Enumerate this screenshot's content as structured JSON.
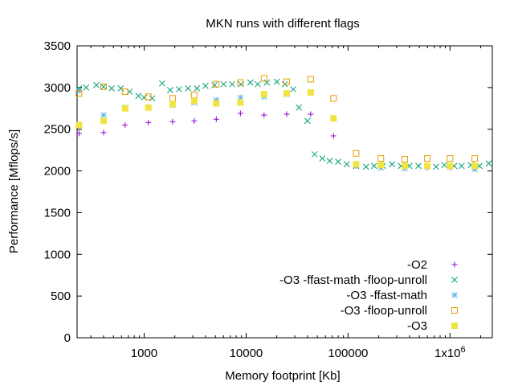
{
  "chart_data": {
    "type": "scatter",
    "title": "MKN runs with different flags",
    "xlabel": "Memory footprint [Kb]",
    "ylabel": "Performance [Mflops/s]",
    "x_scale": "log",
    "xlim": [
      220,
      2600000
    ],
    "ylim": [
      0,
      3500
    ],
    "x_ticks": [
      {
        "value": 1000,
        "label": "1000"
      },
      {
        "value": 10000,
        "label": "10000"
      },
      {
        "value": 100000,
        "label": "100000"
      },
      {
        "value": 1000000,
        "label": "1x10^6"
      }
    ],
    "y_ticks": [
      {
        "value": 0,
        "label": "0"
      },
      {
        "value": 500,
        "label": "500"
      },
      {
        "value": 1000,
        "label": "1000"
      },
      {
        "value": 1500,
        "label": "1500"
      },
      {
        "value": 2000,
        "label": "2000"
      },
      {
        "value": 2500,
        "label": "2500"
      },
      {
        "value": 3000,
        "label": "3000"
      },
      {
        "value": 3500,
        "label": "3500"
      }
    ],
    "grid": false,
    "legend_position": "bottom-right",
    "series": [
      {
        "name": "-O2",
        "marker": "plus",
        "color": "#9400d3",
        "points": [
          [
            230,
            2450
          ],
          [
            400,
            2460
          ],
          [
            650,
            2550
          ],
          [
            1100,
            2580
          ],
          [
            1900,
            2590
          ],
          [
            3100,
            2600
          ],
          [
            5100,
            2620
          ],
          [
            8800,
            2690
          ],
          [
            15000,
            2670
          ],
          [
            25000,
            2680
          ],
          [
            43000,
            2680
          ],
          [
            72000,
            2420
          ],
          [
            120000,
            2060
          ],
          [
            210000,
            2040
          ],
          [
            360000,
            2040
          ],
          [
            600000,
            2040
          ],
          [
            1000000,
            2040
          ],
          [
            1750000,
            2040
          ]
        ]
      },
      {
        "name": "-O3 -ffast-math -floop-unroll",
        "marker": "cross",
        "color": "#009e73",
        "points": [
          [
            230,
            2990
          ],
          [
            270,
            3000
          ],
          [
            340,
            3030
          ],
          [
            400,
            3010
          ],
          [
            480,
            2990
          ],
          [
            590,
            2990
          ],
          [
            720,
            2950
          ],
          [
            880,
            2900
          ],
          [
            1000,
            2880
          ],
          [
            1200,
            2870
          ],
          [
            1500,
            3050
          ],
          [
            1800,
            2970
          ],
          [
            2200,
            2980
          ],
          [
            2700,
            2990
          ],
          [
            3300,
            2990
          ],
          [
            4000,
            3020
          ],
          [
            4900,
            3030
          ],
          [
            6000,
            3040
          ],
          [
            7300,
            3040
          ],
          [
            8900,
            3040
          ],
          [
            11000,
            3060
          ],
          [
            13000,
            3040
          ],
          [
            16000,
            3060
          ],
          [
            20000,
            3070
          ],
          [
            24000,
            3040
          ],
          [
            29000,
            2980
          ],
          [
            33000,
            2760
          ],
          [
            40000,
            2600
          ],
          [
            47000,
            2200
          ],
          [
            56000,
            2150
          ],
          [
            66000,
            2120
          ],
          [
            80000,
            2110
          ],
          [
            97000,
            2080
          ],
          [
            120000,
            2060
          ],
          [
            150000,
            2050
          ],
          [
            180000,
            2060
          ],
          [
            220000,
            2060
          ],
          [
            270000,
            2080
          ],
          [
            330000,
            2060
          ],
          [
            400000,
            2060
          ],
          [
            490000,
            2060
          ],
          [
            600000,
            2060
          ],
          [
            730000,
            2050
          ],
          [
            880000,
            2070
          ],
          [
            1100000,
            2060
          ],
          [
            1300000,
            2060
          ],
          [
            1600000,
            2070
          ],
          [
            1950000,
            2060
          ],
          [
            2400000,
            2090
          ]
        ]
      },
      {
        "name": "-O3 -ffast-math",
        "marker": "star",
        "color": "#56b4e9",
        "points": [
          [
            230,
            2960
          ],
          [
            400,
            2670
          ],
          [
            650,
            2760
          ],
          [
            1100,
            2760
          ],
          [
            1900,
            2790
          ],
          [
            3100,
            2820
          ],
          [
            5100,
            2850
          ],
          [
            8800,
            2880
          ],
          [
            15000,
            2890
          ],
          [
            25000,
            2920
          ],
          [
            43000,
            2940
          ],
          [
            72000,
            2630
          ],
          [
            120000,
            2070
          ],
          [
            210000,
            2040
          ],
          [
            360000,
            2030
          ],
          [
            600000,
            2050
          ],
          [
            1000000,
            2050
          ],
          [
            1750000,
            2020
          ]
        ]
      },
      {
        "name": "-O3 -floop-unroll",
        "marker": "square",
        "color": "#e69f00",
        "points": [
          [
            230,
            2930
          ],
          [
            400,
            3010
          ],
          [
            650,
            2950
          ],
          [
            1100,
            2890
          ],
          [
            1900,
            2870
          ],
          [
            3100,
            2910
          ],
          [
            5100,
            3040
          ],
          [
            8800,
            3060
          ],
          [
            15000,
            3110
          ],
          [
            25000,
            3070
          ],
          [
            43000,
            3100
          ],
          [
            72000,
            2870
          ],
          [
            120000,
            2210
          ],
          [
            210000,
            2150
          ],
          [
            360000,
            2140
          ],
          [
            600000,
            2150
          ],
          [
            1000000,
            2150
          ],
          [
            1750000,
            2150
          ]
        ]
      },
      {
        "name": "-O3",
        "marker": "filled-square",
        "color": "#f0e442",
        "points": [
          [
            230,
            2550
          ],
          [
            400,
            2600
          ],
          [
            650,
            2750
          ],
          [
            1100,
            2760
          ],
          [
            1900,
            2800
          ],
          [
            3100,
            2840
          ],
          [
            5100,
            2810
          ],
          [
            8800,
            2820
          ],
          [
            15000,
            2920
          ],
          [
            25000,
            2930
          ],
          [
            43000,
            2940
          ],
          [
            72000,
            2630
          ],
          [
            120000,
            2080
          ],
          [
            210000,
            2070
          ],
          [
            360000,
            2060
          ],
          [
            600000,
            2060
          ],
          [
            1000000,
            2060
          ],
          [
            1750000,
            2060
          ]
        ]
      }
    ]
  }
}
